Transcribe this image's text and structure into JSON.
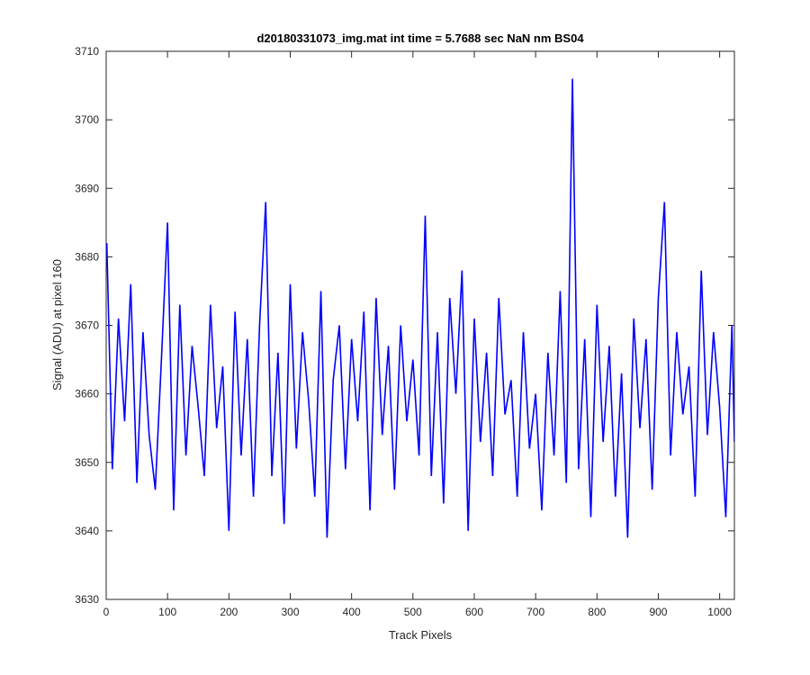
{
  "chart_data": {
    "type": "line",
    "title": "d20180331073_img.mat int time = 5.7688 sec  NaN nm BS04",
    "xlabel": "Track Pixels",
    "ylabel": "Signal (ADU) at pixel 160",
    "xlim": [
      0,
      1024
    ],
    "ylim": [
      3630,
      3710
    ],
    "xticks": [
      0,
      100,
      200,
      300,
      400,
      500,
      600,
      700,
      800,
      900,
      1000
    ],
    "yticks": [
      3630,
      3640,
      3650,
      3660,
      3670,
      3680,
      3690,
      3700,
      3710
    ],
    "grid": false,
    "line_color": "#0000ff",
    "series": [
      {
        "x": [
          1,
          10,
          20,
          30,
          40,
          50,
          60,
          70,
          80,
          90,
          100,
          110,
          120,
          130,
          140,
          150,
          160,
          170,
          180,
          190,
          200,
          210,
          220,
          230,
          240,
          250,
          260,
          270,
          280,
          290,
          300,
          310,
          320,
          330,
          340,
          350,
          360,
          370,
          380,
          390,
          400,
          410,
          420,
          430,
          440,
          450,
          460,
          470,
          480,
          490,
          500,
          510,
          520,
          530,
          540,
          550,
          560,
          570,
          580,
          590,
          600,
          610,
          620,
          630,
          640,
          650,
          660,
          670,
          680,
          690,
          700,
          710,
          720,
          730,
          740,
          750,
          760,
          770,
          780,
          790,
          800,
          810,
          820,
          830,
          840,
          850,
          860,
          870,
          880,
          890,
          900,
          910,
          920,
          930,
          940,
          950,
          960,
          970,
          980,
          990,
          1000,
          1010,
          1020,
          1024
        ],
        "values": [
          3682,
          3649,
          3671,
          3656,
          3676,
          3647,
          3669,
          3654,
          3646,
          3665,
          3685,
          3643,
          3673,
          3651,
          3667,
          3658,
          3648,
          3673,
          3655,
          3664,
          3640,
          3672,
          3651,
          3668,
          3645,
          3670,
          3688,
          3648,
          3666,
          3641,
          3676,
          3652,
          3669,
          3659,
          3645,
          3675,
          3639,
          3662,
          3670,
          3649,
          3668,
          3656,
          3672,
          3643,
          3674,
          3654,
          3667,
          3646,
          3670,
          3656,
          3665,
          3651,
          3686,
          3648,
          3669,
          3644,
          3674,
          3660,
          3678,
          3640,
          3671,
          3653,
          3666,
          3648,
          3674,
          3657,
          3662,
          3645,
          3669,
          3652,
          3660,
          3643,
          3666,
          3651,
          3675,
          3647,
          3706,
          3649,
          3668,
          3642,
          3673,
          3653,
          3667,
          3645,
          3663,
          3639,
          3671,
          3655,
          3668,
          3646,
          3674,
          3688,
          3651,
          3669,
          3657,
          3664,
          3645,
          3678,
          3654,
          3669,
          3658,
          3642,
          3670,
          3653
        ]
      }
    ]
  }
}
